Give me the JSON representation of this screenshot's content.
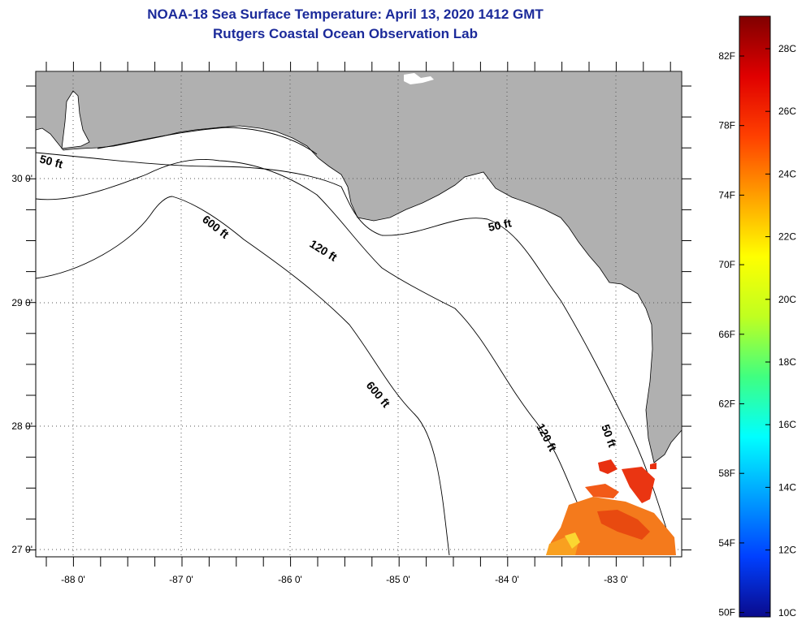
{
  "title": {
    "line1": "NOAA-18 Sea Surface Temperature:  April 13, 2020 1412 GMT",
    "line2": "Rutgers Coastal Ocean Observation Lab"
  },
  "colors": {
    "title": "#1b2a9a",
    "land": "#b0b0b0",
    "water": "#ffffff",
    "contour": "#000000"
  },
  "map": {
    "lon_ticks": [
      "-88 0'",
      "-87 0'",
      "-86 0'",
      "-85 0'",
      "-84 0'",
      "-83 0'"
    ],
    "lat_ticks": [
      "30 0'",
      "29 0'",
      "28 0'",
      "27 0'"
    ],
    "contour_labels": [
      "50 ft",
      "600 ft",
      "120 ft",
      "50 ft",
      "600 ft",
      "120 ft",
      "50 ft"
    ],
    "grid": "dotted"
  },
  "colorbar": {
    "f_labels": [
      "82F",
      "78F",
      "74F",
      "70F",
      "66F",
      "62F",
      "58F",
      "54F",
      "50F"
    ],
    "c_labels": [
      "28C",
      "26C",
      "24C",
      "22C",
      "20C",
      "18C",
      "16C",
      "14C",
      "12C",
      "10C"
    ],
    "stops": [
      "#0a0a8c",
      "#0040ff",
      "#00a0ff",
      "#00ffff",
      "#40ff80",
      "#c0ff20",
      "#ffff00",
      "#ffa000",
      "#ff4000",
      "#e00000",
      "#800000"
    ]
  }
}
